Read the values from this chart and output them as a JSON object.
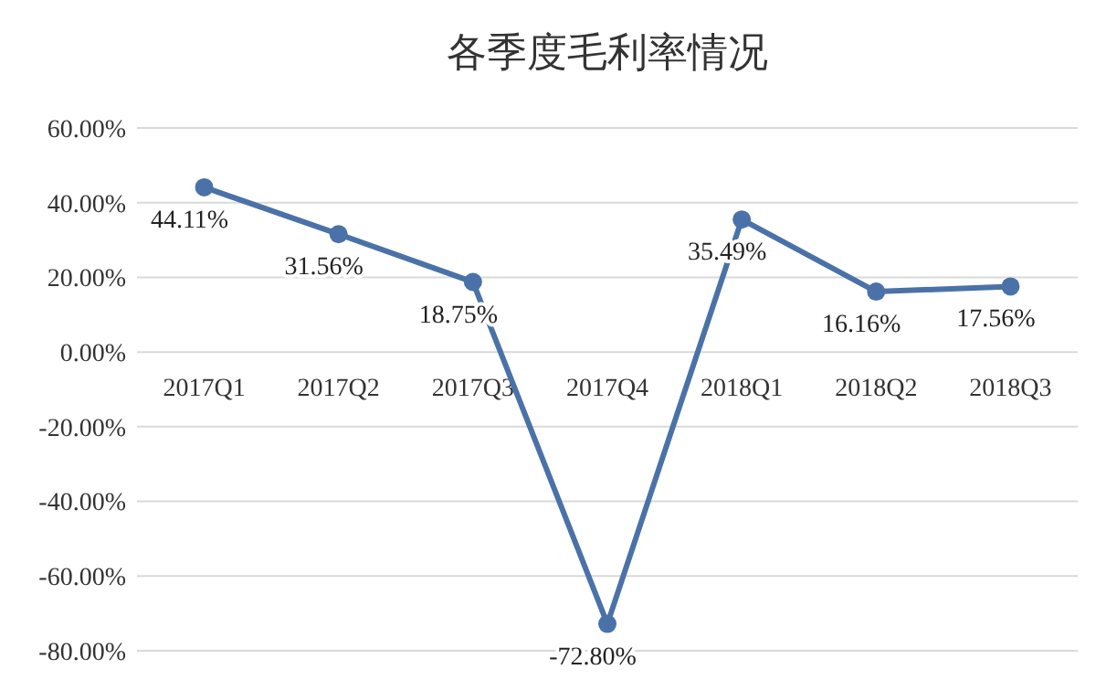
{
  "chart_data": {
    "type": "line",
    "title": "各季度毛利率情况",
    "categories": [
      "2017Q1",
      "2017Q2",
      "2017Q3",
      "2017Q4",
      "2018Q1",
      "2018Q2",
      "2018Q3"
    ],
    "series": [
      {
        "color": "#4a72a8",
        "values": [
          44.11,
          31.56,
          18.75,
          -72.8,
          35.49,
          16.16,
          17.56
        ],
        "value_labels": [
          "44.11%",
          "31.56%",
          "18.75%",
          "-72.80%",
          "35.49%",
          "16.16%",
          "17.56%"
        ]
      }
    ],
    "ylim": [
      -80,
      60
    ],
    "yticks": [
      {
        "value": 60,
        "label": "60.00%"
      },
      {
        "value": 40,
        "label": "40.00%"
      },
      {
        "value": 20,
        "label": "20.00%"
      },
      {
        "value": 0,
        "label": "0.00%"
      },
      {
        "value": -20,
        "label": "-20.00%"
      },
      {
        "value": -40,
        "label": "-40.00%"
      },
      {
        "value": -60,
        "label": "-60.00%"
      },
      {
        "value": -80,
        "label": "-80.00%"
      }
    ],
    "grid": "y",
    "marker": "circle",
    "line_style": "solid"
  }
}
